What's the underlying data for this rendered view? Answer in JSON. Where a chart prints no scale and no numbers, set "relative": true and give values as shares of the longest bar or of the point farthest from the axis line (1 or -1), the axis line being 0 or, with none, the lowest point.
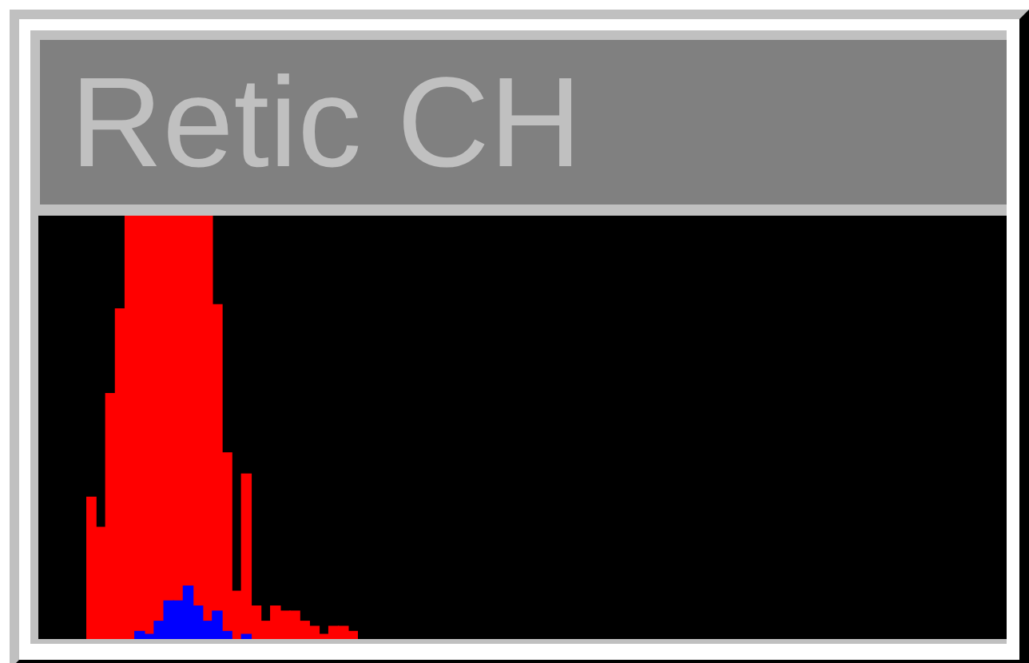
{
  "chart_data": {
    "type": "bar",
    "title": "Retic CH",
    "relative": true,
    "stacked": true,
    "categories": [
      null,
      null,
      null,
      null,
      null,
      null,
      null,
      null,
      null,
      null,
      null,
      null,
      null,
      null,
      null,
      null,
      null,
      null,
      null,
      null,
      null,
      null,
      null,
      null,
      null,
      null,
      null,
      null
    ],
    "series": [
      {
        "color": "#0000ff",
        "values": [
          null,
          null,
          null,
          null,
          null,
          0.018,
          0.011,
          0.042,
          0.09,
          0.09,
          0.125,
          0.078,
          0.042,
          0.066,
          0.018,
          null,
          0.011,
          null,
          null,
          null,
          null,
          null,
          null,
          null,
          null,
          null,
          null,
          null
        ]
      },
      {
        "color": "#ff0000",
        "values": [
          0.335,
          0.264,
          0.58,
          0.78,
          1,
          0.982,
          0.989,
          0.958,
          0.91,
          0.91,
          0.875,
          0.922,
          0.958,
          0.724,
          0.422,
          0.113,
          0.379,
          0.078,
          0.042,
          0.078,
          0.066,
          0.066,
          0.042,
          0.03,
          0.011,
          0.03,
          0.03,
          0.018
        ]
      }
    ]
  }
}
